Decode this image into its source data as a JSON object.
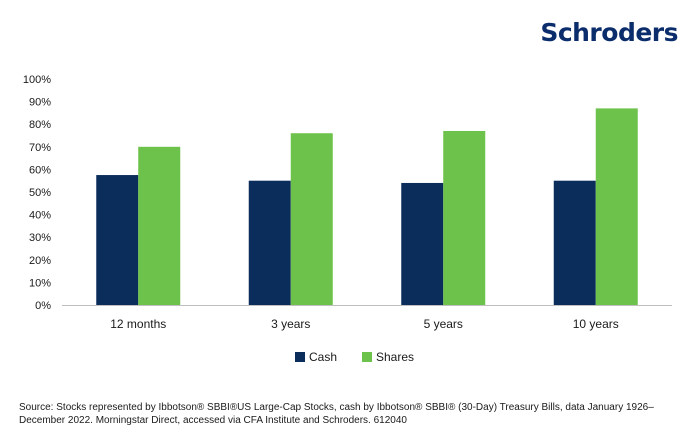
{
  "brand": {
    "logo_text": "Schroders",
    "color": "#0b2d6b"
  },
  "chart_data": {
    "type": "bar",
    "categories": [
      "12 months",
      "3 years",
      "5 years",
      "10 years"
    ],
    "series": [
      {
        "name": "Cash",
        "values": [
          57.5,
          55,
          54,
          55
        ],
        "color": "#0b2d5c"
      },
      {
        "name": "Shares",
        "values": [
          70,
          76,
          77,
          87
        ],
        "color": "#6cc24a"
      }
    ],
    "yticks": [
      "0%",
      "10%",
      "20%",
      "30%",
      "40%",
      "50%",
      "60%",
      "70%",
      "80%",
      "90%",
      "100%"
    ],
    "ylim": [
      0,
      100
    ],
    "grid": false,
    "legend_position": "bottom"
  },
  "source": {
    "text": "Source: Stocks represented by Ibbotson® SBBI®US Large-Cap Stocks, cash by Ibbotson® SBBI® (30-Day) Treasury Bills, data January 1926–December 2022. Morningstar Direct, accessed via CFA Institute and Schroders. 612040"
  }
}
